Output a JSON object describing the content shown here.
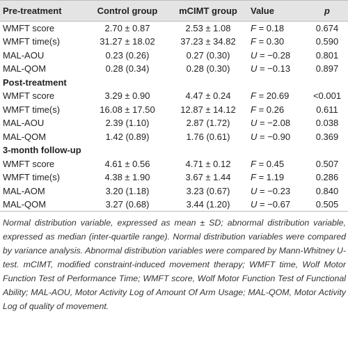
{
  "table": {
    "header": [
      "Pre-treatment",
      "Control group",
      "mCIMT group",
      "Value",
      "p"
    ],
    "groups": [
      {
        "rows": [
          [
            "WMFT score",
            "2.70 ± 0.87",
            "2.53 ± 1.08",
            "F = 0.18",
            "0.674"
          ],
          [
            "WMFT time(s)",
            "31.27 ± 18.02",
            "37.23 ± 34.82",
            "F = 0.30",
            "0.590"
          ],
          [
            "MAL-AOU",
            "0.23 (0.26)",
            "0.27 (0.30)",
            "U = −0.28",
            "0.801"
          ],
          [
            "MAL-QOM",
            "0.28 (0.34)",
            "0.28 (0.30)",
            "U = −0.13",
            "0.897"
          ]
        ]
      },
      {
        "title": "Post-treatment",
        "rows": [
          [
            "WMFT score",
            "3.29 ± 0.90",
            "4.47 ± 0.24",
            "F = 20.69",
            "<0.001"
          ],
          [
            "WMFT time(s)",
            "16.08 ± 17.50",
            "12.87 ± 14.12",
            "F = 0.26",
            "0.611"
          ],
          [
            "MAL-AOU",
            "2.39 (1.10)",
            "2.87 (1.72)",
            "U = −2.08",
            "0.038"
          ],
          [
            "MAL-QOM",
            "1.42 (0.89)",
            "1.76 (0.61)",
            "U = −0.90",
            "0.369"
          ]
        ]
      },
      {
        "title": "3-month follow-up",
        "rows": [
          [
            "WMFT score",
            "4.61 ± 0.56",
            "4.71 ± 0.12",
            "F = 0.45",
            "0.507"
          ],
          [
            "WMFT time(s)",
            "4.38 ± 1.90",
            "3.67 ± 1.44",
            "F = 1.19",
            "0.286"
          ],
          [
            "MAL-AOM",
            "3.20 (1.18)",
            "3.23 (0.67)",
            "U = −0.23",
            "0.840"
          ],
          [
            "MAL-QOM",
            "3.27 (0.68)",
            "3.44 (1.20)",
            "U = −0.67",
            "0.505"
          ]
        ]
      }
    ],
    "footnote": "Normal distribution variable, expressed as mean ± SD; abnormal distribution variable, expressed as median (inter-quartile range). Normal distribution variables were compared by variance analysis. Abnormal distribution variables were compared by Mann-Whitney U-test. mCIMT, modified constraint-induced movement therapy; WMFT time, Wolf Motor Function Test of Performance Time; WMFT score, Wolf Motor Function Test of Functional Ability; MAL-AOU, Motor Activity Log of Amount Of Arm Usage; MAL-QOM, Motor Activity Log of quality of movement."
  }
}
